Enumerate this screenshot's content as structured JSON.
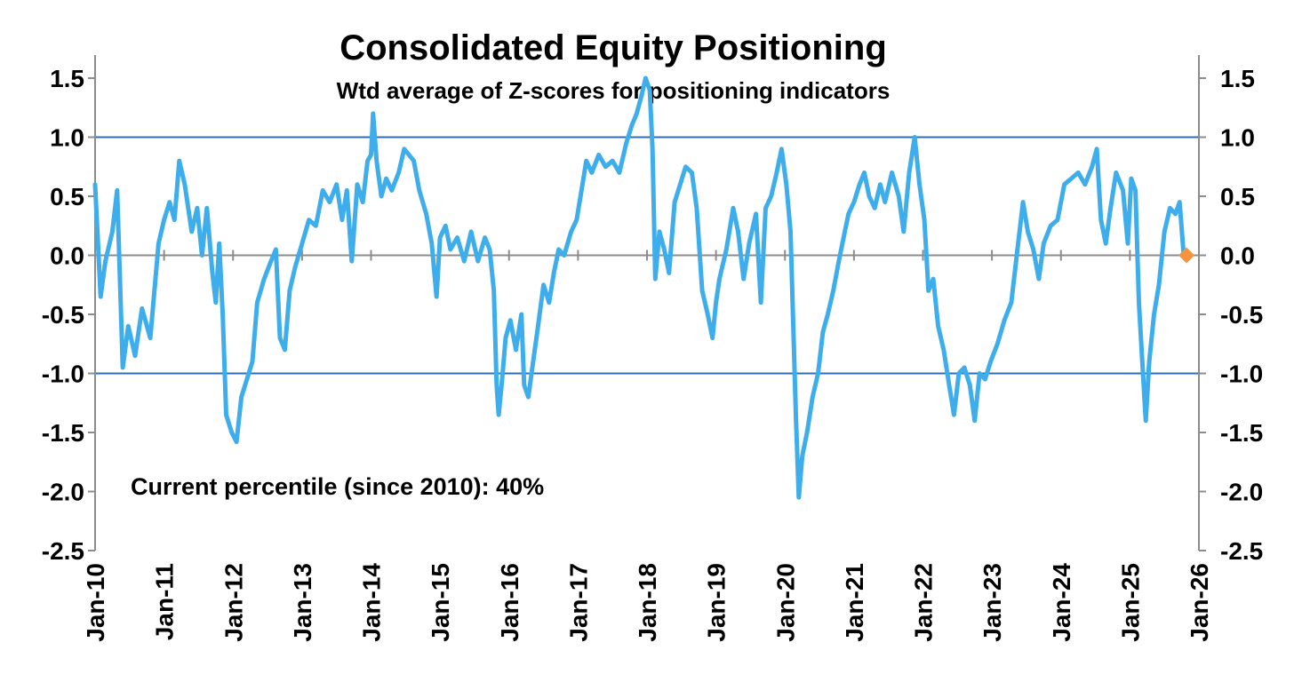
{
  "chart_data": {
    "type": "line",
    "title": "Consolidated Equity Positioning",
    "subtitle": "Wtd average of Z-scores for positioning indicators",
    "annotation": "Current percentile (since 2010): 40%",
    "xlabel": "",
    "ylabel": "",
    "ylim": [
      -2.5,
      1.5
    ],
    "y_ticks": [
      "1.5",
      "1.0",
      "0.5",
      "0.0",
      "-0.5",
      "-1.0",
      "-1.5",
      "-2.0",
      "-2.5"
    ],
    "x_range": [
      2010.0,
      2026.0
    ],
    "x_tick_labels": [
      "Jan-10",
      "Jan-11",
      "Jan-12",
      "Jan-13",
      "Jan-14",
      "Jan-15",
      "Jan-16",
      "Jan-17",
      "Jan-18",
      "Jan-19",
      "Jan-20",
      "Jan-21",
      "Jan-22",
      "Jan-23",
      "Jan-24",
      "Jan-25",
      "Jan-26"
    ],
    "reference_lines": [
      1.0,
      -1.0
    ],
    "grid": false,
    "legend": "none",
    "colors": {
      "series": "#3daeeb",
      "reference": "#2f6db0",
      "marker": "#f59440",
      "axis": "#8c8c8c"
    },
    "series": [
      {
        "values": [
          [
            2010.0,
            0.6
          ],
          [
            2010.08,
            -0.35
          ],
          [
            2010.15,
            -0.05
          ],
          [
            2010.25,
            0.2
          ],
          [
            2010.32,
            0.55
          ],
          [
            2010.4,
            -0.95
          ],
          [
            2010.48,
            -0.6
          ],
          [
            2010.58,
            -0.85
          ],
          [
            2010.68,
            -0.45
          ],
          [
            2010.8,
            -0.7
          ],
          [
            2010.92,
            0.1
          ],
          [
            2011.0,
            0.3
          ],
          [
            2011.08,
            0.45
          ],
          [
            2011.15,
            0.3
          ],
          [
            2011.22,
            0.8
          ],
          [
            2011.3,
            0.6
          ],
          [
            2011.4,
            0.2
          ],
          [
            2011.48,
            0.4
          ],
          [
            2011.55,
            0.0
          ],
          [
            2011.62,
            0.4
          ],
          [
            2011.7,
            -0.15
          ],
          [
            2011.75,
            -0.4
          ],
          [
            2011.8,
            0.1
          ],
          [
            2011.85,
            -0.5
          ],
          [
            2011.9,
            -1.35
          ],
          [
            2011.98,
            -1.5
          ],
          [
            2012.05,
            -1.58
          ],
          [
            2012.12,
            -1.2
          ],
          [
            2012.2,
            -1.05
          ],
          [
            2012.28,
            -0.9
          ],
          [
            2012.35,
            -0.4
          ],
          [
            2012.45,
            -0.2
          ],
          [
            2012.55,
            -0.05
          ],
          [
            2012.62,
            0.05
          ],
          [
            2012.68,
            -0.7
          ],
          [
            2012.75,
            -0.8
          ],
          [
            2012.82,
            -0.3
          ],
          [
            2012.9,
            -0.1
          ],
          [
            2013.0,
            0.1
          ],
          [
            2013.1,
            0.3
          ],
          [
            2013.2,
            0.25
          ],
          [
            2013.3,
            0.55
          ],
          [
            2013.4,
            0.45
          ],
          [
            2013.5,
            0.6
          ],
          [
            2013.58,
            0.3
          ],
          [
            2013.65,
            0.55
          ],
          [
            2013.72,
            -0.05
          ],
          [
            2013.8,
            0.6
          ],
          [
            2013.88,
            0.45
          ],
          [
            2013.95,
            0.8
          ],
          [
            2014.0,
            0.85
          ],
          [
            2014.03,
            1.2
          ],
          [
            2014.08,
            0.8
          ],
          [
            2014.15,
            0.5
          ],
          [
            2014.22,
            0.65
          ],
          [
            2014.3,
            0.55
          ],
          [
            2014.4,
            0.7
          ],
          [
            2014.48,
            0.9
          ],
          [
            2014.55,
            0.85
          ],
          [
            2014.62,
            0.8
          ],
          [
            2014.7,
            0.55
          ],
          [
            2014.8,
            0.35
          ],
          [
            2014.88,
            0.1
          ],
          [
            2014.95,
            -0.35
          ],
          [
            2015.0,
            0.15
          ],
          [
            2015.08,
            0.25
          ],
          [
            2015.15,
            0.05
          ],
          [
            2015.25,
            0.15
          ],
          [
            2015.35,
            -0.05
          ],
          [
            2015.45,
            0.2
          ],
          [
            2015.55,
            -0.05
          ],
          [
            2015.65,
            0.15
          ],
          [
            2015.72,
            0.05
          ],
          [
            2015.78,
            -0.3
          ],
          [
            2015.82,
            -1.1
          ],
          [
            2015.85,
            -1.35
          ],
          [
            2015.9,
            -1.05
          ],
          [
            2015.95,
            -0.7
          ],
          [
            2016.02,
            -0.55
          ],
          [
            2016.1,
            -0.8
          ],
          [
            2016.18,
            -0.5
          ],
          [
            2016.22,
            -1.1
          ],
          [
            2016.28,
            -1.2
          ],
          [
            2016.35,
            -0.9
          ],
          [
            2016.42,
            -0.6
          ],
          [
            2016.5,
            -0.25
          ],
          [
            2016.58,
            -0.4
          ],
          [
            2016.65,
            -0.15
          ],
          [
            2016.72,
            0.05
          ],
          [
            2016.8,
            0.0
          ],
          [
            2016.9,
            0.2
          ],
          [
            2016.98,
            0.3
          ],
          [
            2017.05,
            0.55
          ],
          [
            2017.12,
            0.8
          ],
          [
            2017.2,
            0.7
          ],
          [
            2017.3,
            0.85
          ],
          [
            2017.4,
            0.75
          ],
          [
            2017.5,
            0.8
          ],
          [
            2017.6,
            0.7
          ],
          [
            2017.7,
            0.95
          ],
          [
            2017.78,
            1.1
          ],
          [
            2017.85,
            1.2
          ],
          [
            2017.92,
            1.35
          ],
          [
            2017.98,
            1.5
          ],
          [
            2018.04,
            1.4
          ],
          [
            2018.08,
            0.9
          ],
          [
            2018.12,
            -0.2
          ],
          [
            2018.18,
            0.2
          ],
          [
            2018.25,
            0.05
          ],
          [
            2018.32,
            -0.15
          ],
          [
            2018.4,
            0.45
          ],
          [
            2018.48,
            0.6
          ],
          [
            2018.56,
            0.75
          ],
          [
            2018.65,
            0.7
          ],
          [
            2018.72,
            0.4
          ],
          [
            2018.8,
            -0.3
          ],
          [
            2018.88,
            -0.5
          ],
          [
            2018.95,
            -0.7
          ],
          [
            2019.0,
            -0.4
          ],
          [
            2019.05,
            -0.2
          ],
          [
            2019.15,
            0.05
          ],
          [
            2019.25,
            0.4
          ],
          [
            2019.32,
            0.2
          ],
          [
            2019.4,
            -0.2
          ],
          [
            2019.48,
            0.1
          ],
          [
            2019.58,
            0.35
          ],
          [
            2019.65,
            -0.4
          ],
          [
            2019.72,
            0.4
          ],
          [
            2019.8,
            0.5
          ],
          [
            2019.88,
            0.7
          ],
          [
            2019.95,
            0.9
          ],
          [
            2020.02,
            0.6
          ],
          [
            2020.08,
            0.2
          ],
          [
            2020.12,
            -0.6
          ],
          [
            2020.16,
            -1.4
          ],
          [
            2020.2,
            -2.05
          ],
          [
            2020.25,
            -1.7
          ],
          [
            2020.32,
            -1.5
          ],
          [
            2020.4,
            -1.2
          ],
          [
            2020.48,
            -1.0
          ],
          [
            2020.55,
            -0.65
          ],
          [
            2020.62,
            -0.5
          ],
          [
            2020.7,
            -0.3
          ],
          [
            2020.78,
            -0.05
          ],
          [
            2020.85,
            0.15
          ],
          [
            2020.92,
            0.35
          ],
          [
            2021.0,
            0.45
          ],
          [
            2021.08,
            0.6
          ],
          [
            2021.15,
            0.7
          ],
          [
            2021.22,
            0.5
          ],
          [
            2021.3,
            0.4
          ],
          [
            2021.38,
            0.6
          ],
          [
            2021.45,
            0.45
          ],
          [
            2021.55,
            0.7
          ],
          [
            2021.65,
            0.5
          ],
          [
            2021.72,
            0.2
          ],
          [
            2021.8,
            0.7
          ],
          [
            2021.88,
            1.0
          ],
          [
            2021.95,
            0.6
          ],
          [
            2022.02,
            0.3
          ],
          [
            2022.08,
            -0.3
          ],
          [
            2022.15,
            -0.2
          ],
          [
            2022.22,
            -0.6
          ],
          [
            2022.3,
            -0.8
          ],
          [
            2022.38,
            -1.1
          ],
          [
            2022.45,
            -1.35
          ],
          [
            2022.52,
            -1.0
          ],
          [
            2022.6,
            -0.95
          ],
          [
            2022.68,
            -1.1
          ],
          [
            2022.75,
            -1.4
          ],
          [
            2022.82,
            -1.0
          ],
          [
            2022.9,
            -1.05
          ],
          [
            2022.98,
            -0.9
          ],
          [
            2023.08,
            -0.75
          ],
          [
            2023.18,
            -0.55
          ],
          [
            2023.28,
            -0.4
          ],
          [
            2023.38,
            0.1
          ],
          [
            2023.45,
            0.45
          ],
          [
            2023.52,
            0.2
          ],
          [
            2023.6,
            0.05
          ],
          [
            2023.68,
            -0.2
          ],
          [
            2023.75,
            0.1
          ],
          [
            2023.85,
            0.25
          ],
          [
            2023.95,
            0.3
          ],
          [
            2024.05,
            0.6
          ],
          [
            2024.15,
            0.65
          ],
          [
            2024.25,
            0.7
          ],
          [
            2024.35,
            0.6
          ],
          [
            2024.45,
            0.75
          ],
          [
            2024.52,
            0.9
          ],
          [
            2024.58,
            0.3
          ],
          [
            2024.65,
            0.1
          ],
          [
            2024.72,
            0.4
          ],
          [
            2024.8,
            0.7
          ],
          [
            2024.9,
            0.55
          ],
          [
            2024.97,
            0.1
          ],
          [
            2025.02,
            0.65
          ],
          [
            2025.08,
            0.55
          ],
          [
            2025.13,
            -0.4
          ],
          [
            2025.18,
            -0.9
          ],
          [
            2025.23,
            -1.4
          ],
          [
            2025.28,
            -0.9
          ],
          [
            2025.35,
            -0.5
          ],
          [
            2025.42,
            -0.25
          ],
          [
            2025.5,
            0.2
          ],
          [
            2025.58,
            0.4
          ],
          [
            2025.66,
            0.35
          ],
          [
            2025.72,
            0.45
          ],
          [
            2025.78,
            0.0
          ]
        ]
      }
    ],
    "last_point": [
      2025.82,
      0.0
    ]
  }
}
